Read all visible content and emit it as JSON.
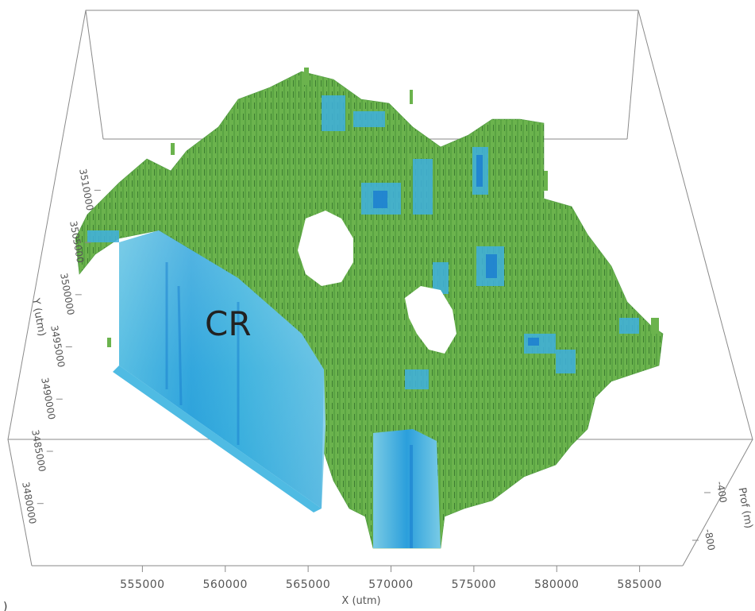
{
  "chart_data": {
    "type": "3d-voxel-volume",
    "xlabel": "X (utm)",
    "ylabel": "Y (utm)",
    "zlabel": "Prof (m)",
    "x_ticks": [
      555000,
      560000,
      565000,
      570000,
      575000,
      580000,
      585000
    ],
    "x_tick_labels": [
      "555000",
      "560000",
      "565000",
      "570000",
      "575000",
      "580000",
      "585000"
    ],
    "y_ticks": [
      3480000,
      3485000,
      3490000,
      3495000,
      3500000,
      3505000,
      3510000
    ],
    "y_tick_labels": [
      "3480000",
      "3485000",
      "3490000",
      "3495000",
      "3500000",
      "3505000",
      "3510000"
    ],
    "z_ticks": [
      -400,
      -800
    ],
    "z_tick_labels": [
      "-400",
      "-800"
    ],
    "annotation": "CR",
    "panel_letter": ")",
    "colors": {
      "high": "#6ab04c",
      "mid": "#3cb4dc",
      "low": "#1a7fd0",
      "box": "#8a8a8a",
      "text": "#555555"
    }
  }
}
